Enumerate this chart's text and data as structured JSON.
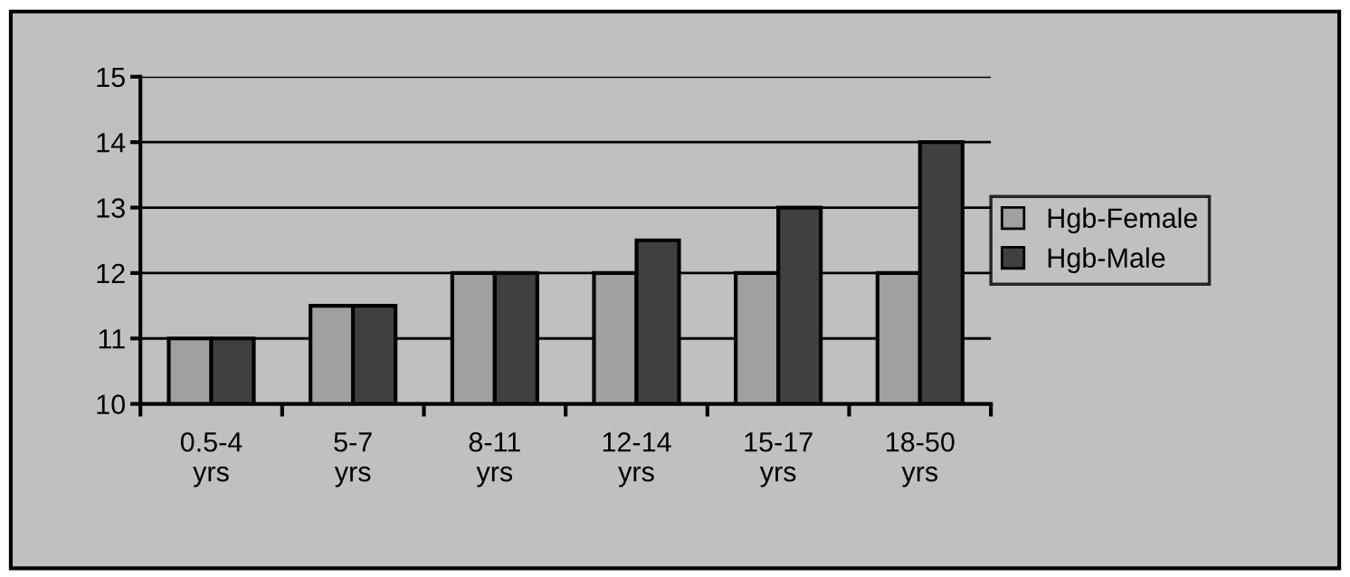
{
  "chart_data": {
    "type": "bar",
    "categories": [
      "0.5-4\nyrs",
      "5-7\nyrs",
      "8-11\nyrs",
      "12-14\nyrs",
      "15-17\nyrs",
      "18-50\nyrs"
    ],
    "series": [
      {
        "name": "Hgb-Female",
        "color": "#a0a0a0",
        "values": [
          11,
          11.5,
          12,
          12,
          12,
          12
        ]
      },
      {
        "name": "Hgb-Male",
        "color": "#404040",
        "values": [
          11,
          11.5,
          12,
          12.5,
          13,
          14
        ]
      }
    ],
    "ylim": [
      10,
      15
    ],
    "yticks": [
      10,
      11,
      12,
      13,
      14,
      15
    ],
    "grid": "y",
    "legend": "right"
  }
}
